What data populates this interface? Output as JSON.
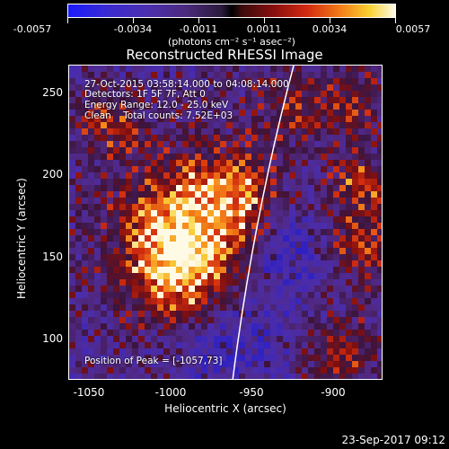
{
  "colorbar": {
    "tick_labels": [
      "-0.0057",
      "-0.0034",
      "-0.0011",
      "0.0011",
      "0.0034",
      "0.0057"
    ],
    "units": "(photons cm⁻² s⁻¹ asec⁻²)"
  },
  "title": "Reconstructed RHESSI Image",
  "info": {
    "time_range": "27-Oct-2015 03:58:14.000 to 04:08:14.000",
    "detectors": "Detectors: 1F 5F 7F, Att 0",
    "energy_range": "Energy Range: 12.0 - 25.0 keV",
    "clean": "Clean    Total counts: 7.52E+03",
    "peak": "Position of Peak = [-1057,73]"
  },
  "axes": {
    "xlabel": "Heliocentric X (arcsec)",
    "ylabel": "Heliocentric Y (arcsec)",
    "x_ticks": [
      "-1050",
      "-1000",
      "-950",
      "-900"
    ],
    "y_ticks": [
      "250",
      "200",
      "150",
      "100"
    ],
    "xlim": [
      -1062,
      -872
    ],
    "ylim": [
      72,
      268
    ]
  },
  "footer": {
    "date": "23-Sep-2017 09:12"
  },
  "colors": {
    "background": "#000000",
    "foreground": "#ffffff"
  }
}
